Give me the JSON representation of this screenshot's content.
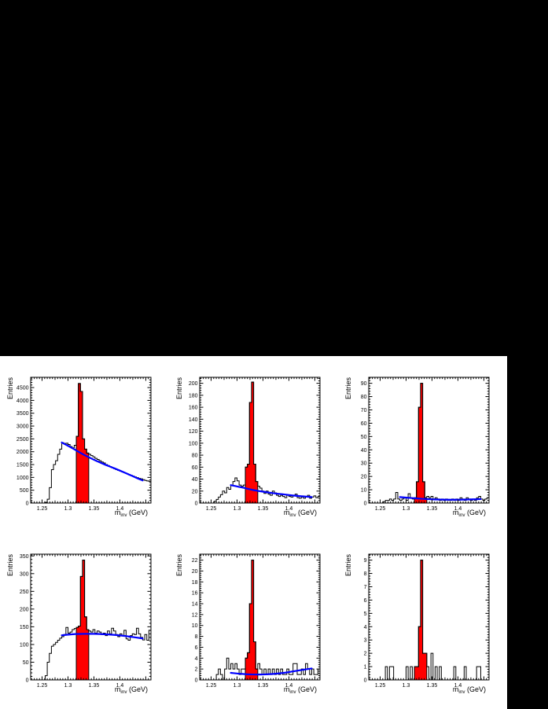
{
  "page": {
    "background_color": "#ffffff",
    "band_color": "#000000"
  },
  "colors": {
    "signal_fill": "#ff0000",
    "fit_line": "#0000ff",
    "histogram_line": "#000000",
    "text": "#000000"
  },
  "chart_data": [
    {
      "type": "bar",
      "ylabel": "Entries",
      "xlabel_main": "m",
      "xlabel_sub": "inv",
      "xlabel_rest": " (GeV)",
      "x0": 1.228,
      "dx": 0.004,
      "xlim": [
        1.228,
        1.46
      ],
      "ylim": [
        0,
        4900
      ],
      "xticks": [
        [
          1.25,
          "1.25"
        ],
        [
          1.3,
          "1.3"
        ],
        [
          1.35,
          "1.35"
        ],
        [
          1.4,
          "1.4"
        ],
        [
          1.45,
          ""
        ]
      ],
      "x_minor_step": 0.005,
      "yticks": [
        0,
        500,
        1000,
        1500,
        2000,
        2500,
        3000,
        3500,
        4000,
        4500
      ],
      "y_minor_step": 100,
      "grid": false,
      "signal_range": [
        1.316,
        1.34
      ],
      "bins": [
        0,
        0,
        0,
        0,
        0,
        0,
        0,
        30,
        150,
        600,
        1300,
        1500,
        1650,
        1900,
        2100,
        2350,
        2320,
        2330,
        2280,
        2200,
        2150,
        2250,
        2600,
        4660,
        4350,
        2500,
        2100,
        1950,
        1900,
        1850,
        1800,
        1740,
        1700,
        1650,
        1600,
        1560,
        1500,
        1460,
        1420,
        1380,
        1340,
        1300,
        1270,
        1240,
        1210,
        1180,
        1150,
        1110,
        1080,
        1050,
        1020,
        990,
        960,
        940,
        910,
        880,
        860,
        845
      ],
      "fit_curve": [
        [
          1.288,
          2360
        ],
        [
          1.31,
          2120
        ],
        [
          1.33,
          1890
        ],
        [
          1.35,
          1690
        ],
        [
          1.37,
          1510
        ],
        [
          1.39,
          1350
        ],
        [
          1.41,
          1180
        ],
        [
          1.43,
          1000
        ],
        [
          1.444,
          880
        ]
      ]
    },
    {
      "type": "bar",
      "ylabel": "Entries",
      "xlabel_main": "m",
      "xlabel_sub": "inv",
      "xlabel_rest": " (GeV)",
      "x0": 1.228,
      "dx": 0.004,
      "xlim": [
        1.228,
        1.46
      ],
      "ylim": [
        0,
        210
      ],
      "xticks": [
        [
          1.25,
          "1.25"
        ],
        [
          1.3,
          "1.3"
        ],
        [
          1.35,
          "1.35"
        ],
        [
          1.4,
          "1.4"
        ],
        [
          1.45,
          ""
        ]
      ],
      "x_minor_step": 0.005,
      "yticks": [
        0,
        20,
        40,
        60,
        80,
        100,
        120,
        140,
        160,
        180,
        200
      ],
      "y_minor_step": 4,
      "grid": false,
      "signal_range": [
        1.316,
        1.34
      ],
      "bins": [
        0,
        0,
        0,
        0,
        0,
        0,
        0,
        3,
        6,
        10,
        14,
        20,
        17,
        26,
        23,
        30,
        36,
        42,
        37,
        30,
        28,
        30,
        60,
        65,
        168,
        202,
        65,
        36,
        28,
        25,
        20,
        16,
        20,
        15,
        13,
        20,
        17,
        13,
        11,
        13,
        11,
        9,
        13,
        11,
        10,
        13,
        15,
        9,
        8,
        10,
        8,
        11,
        13,
        8,
        10,
        12,
        9,
        11
      ],
      "fit_curve": [
        [
          1.288,
          30
        ],
        [
          1.31,
          26
        ],
        [
          1.33,
          22
        ],
        [
          1.35,
          19
        ],
        [
          1.37,
          16.5
        ],
        [
          1.39,
          14.5
        ],
        [
          1.41,
          12.5
        ],
        [
          1.43,
          11
        ],
        [
          1.444,
          10
        ]
      ]
    },
    {
      "type": "bar",
      "ylabel": "Entries",
      "xlabel_main": "m",
      "xlabel_sub": "inv",
      "xlabel_rest": " (GeV)",
      "x0": 1.228,
      "dx": 0.004,
      "xlim": [
        1.228,
        1.46
      ],
      "ylim": [
        0,
        94.5
      ],
      "xticks": [
        [
          1.25,
          "1.25"
        ],
        [
          1.3,
          "1.3"
        ],
        [
          1.35,
          "1.35"
        ],
        [
          1.4,
          "1.4"
        ],
        [
          1.45,
          ""
        ]
      ],
      "x_minor_step": 0.005,
      "yticks": [
        0,
        10,
        20,
        30,
        40,
        50,
        60,
        70,
        80,
        90
      ],
      "y_minor_step": 2,
      "grid": false,
      "signal_range": [
        1.316,
        1.34
      ],
      "bins": [
        0,
        0,
        0,
        0,
        0,
        0,
        0,
        1,
        2,
        2,
        3,
        2,
        3,
        8,
        3,
        2,
        3,
        4,
        2,
        7,
        4,
        3,
        4,
        16,
        72,
        90,
        16,
        4,
        5,
        4,
        5,
        3,
        4,
        3,
        2,
        3,
        2,
        3,
        2,
        2,
        3,
        2,
        3,
        2,
        4,
        3,
        2,
        4,
        3,
        2,
        3,
        2,
        4,
        5,
        3,
        2,
        3,
        4
      ],
      "fit_curve": [
        [
          1.288,
          4.5
        ],
        [
          1.31,
          3.8
        ],
        [
          1.33,
          3.2
        ],
        [
          1.35,
          2.8
        ],
        [
          1.37,
          2.6
        ],
        [
          1.39,
          2.5
        ],
        [
          1.41,
          2.6
        ],
        [
          1.43,
          2.8
        ],
        [
          1.444,
          3.0
        ]
      ]
    },
    {
      "type": "bar",
      "ylabel": "Entries",
      "xlabel_main": "m",
      "xlabel_sub": "inv",
      "xlabel_rest": " (GeV)",
      "x0": 1.228,
      "dx": 0.004,
      "xlim": [
        1.228,
        1.46
      ],
      "ylim": [
        0,
        355
      ],
      "xticks": [
        [
          1.25,
          "1.25"
        ],
        [
          1.3,
          "1.3"
        ],
        [
          1.35,
          "1.35"
        ],
        [
          1.4,
          "1.4"
        ],
        [
          1.45,
          ""
        ]
      ],
      "x_minor_step": 0.005,
      "yticks": [
        0,
        50,
        100,
        150,
        200,
        250,
        300,
        350
      ],
      "y_minor_step": 10,
      "grid": false,
      "signal_range": [
        1.316,
        1.34
      ],
      "bins": [
        0,
        0,
        0,
        0,
        0,
        0,
        0,
        12,
        50,
        75,
        95,
        100,
        106,
        112,
        118,
        122,
        128,
        148,
        132,
        135,
        142,
        145,
        148,
        152,
        292,
        338,
        178,
        142,
        138,
        135,
        142,
        132,
        138,
        135,
        128,
        132,
        125,
        138,
        130,
        146,
        138,
        128,
        122,
        130,
        125,
        140,
        116,
        112,
        125,
        130,
        128,
        146,
        130,
        120,
        113,
        128,
        112,
        140
      ],
      "fit_curve": [
        [
          1.288,
          126
        ],
        [
          1.31,
          129
        ],
        [
          1.33,
          130
        ],
        [
          1.35,
          130
        ],
        [
          1.37,
          129
        ],
        [
          1.39,
          127
        ],
        [
          1.41,
          124
        ],
        [
          1.43,
          120
        ],
        [
          1.444,
          117
        ]
      ]
    },
    {
      "type": "bar",
      "ylabel": "Entries",
      "xlabel_main": "m",
      "xlabel_sub": "inv",
      "xlabel_rest": " (GeV)",
      "x0": 1.228,
      "dx": 0.004,
      "xlim": [
        1.228,
        1.46
      ],
      "ylim": [
        0,
        23.1
      ],
      "xticks": [
        [
          1.25,
          "1.25"
        ],
        [
          1.3,
          "1.3"
        ],
        [
          1.35,
          "1.35"
        ],
        [
          1.4,
          "1.4"
        ],
        [
          1.45,
          ""
        ]
      ],
      "x_minor_step": 0.005,
      "yticks": [
        0,
        2,
        4,
        6,
        8,
        10,
        12,
        14,
        16,
        18,
        20,
        22
      ],
      "y_minor_step": 0.4,
      "grid": false,
      "signal_range": [
        1.316,
        1.34
      ],
      "bins": [
        0,
        0,
        0,
        0,
        0,
        0,
        0,
        0,
        1,
        2,
        1,
        0,
        2,
        4,
        2,
        3,
        2,
        3,
        2,
        1,
        2,
        2,
        4,
        5,
        14,
        22,
        7,
        2,
        3,
        2,
        1,
        2,
        1,
        2,
        1,
        2,
        1,
        2,
        1,
        2,
        1,
        1,
        2,
        1,
        1,
        3,
        3,
        1,
        1,
        2,
        1,
        3,
        2,
        1,
        2,
        1,
        1,
        2
      ],
      "fit_curve": [
        [
          1.288,
          1.3
        ],
        [
          1.31,
          1.1
        ],
        [
          1.33,
          1.0
        ],
        [
          1.35,
          1.0
        ],
        [
          1.37,
          1.1
        ],
        [
          1.39,
          1.3
        ],
        [
          1.41,
          1.6
        ],
        [
          1.43,
          1.9
        ],
        [
          1.444,
          2.1
        ]
      ]
    },
    {
      "type": "bar",
      "ylabel": "Entries",
      "xlabel_main": "m",
      "xlabel_sub": "inv",
      "xlabel_rest": " (GeV)",
      "x0": 1.228,
      "dx": 0.004,
      "xlim": [
        1.228,
        1.46
      ],
      "ylim": [
        0,
        9.45
      ],
      "xticks": [
        [
          1.25,
          "1.25"
        ],
        [
          1.3,
          "1.3"
        ],
        [
          1.35,
          "1.35"
        ],
        [
          1.4,
          "1.4"
        ],
        [
          1.45,
          ""
        ]
      ],
      "x_minor_step": 0.005,
      "yticks": [
        0,
        1,
        2,
        3,
        4,
        5,
        6,
        7,
        8,
        9
      ],
      "y_minor_step": 0.2,
      "grid": false,
      "signal_range": [
        1.316,
        1.34
      ],
      "bins": [
        0,
        0,
        0,
        0,
        0,
        0,
        0,
        0,
        1,
        0,
        1,
        1,
        0,
        0,
        0,
        0,
        0,
        0,
        1,
        0,
        1,
        0,
        1,
        1,
        4,
        9,
        2,
        2,
        1,
        0,
        2,
        0,
        1,
        0,
        1,
        0,
        0,
        0,
        0,
        0,
        0,
        1,
        0,
        0,
        0,
        0,
        1,
        0,
        0,
        0,
        0,
        0,
        1,
        1,
        0,
        0,
        0,
        0
      ],
      "fit_curve": null
    }
  ]
}
